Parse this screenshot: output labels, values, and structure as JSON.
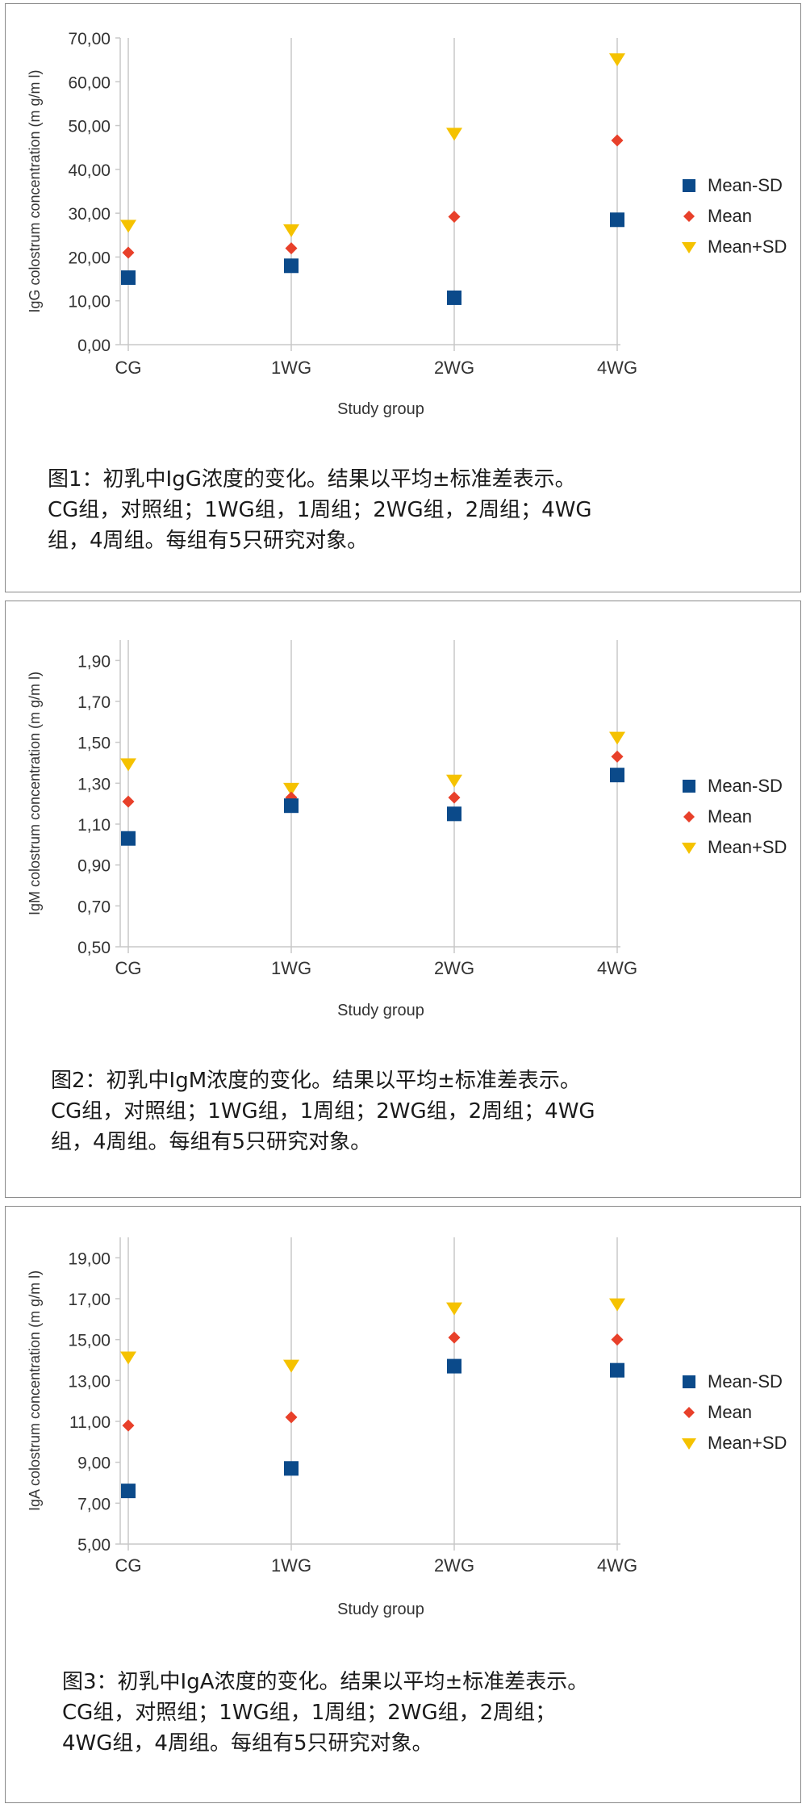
{
  "colors": {
    "mean_minus_sd": "#0b4a8a",
    "mean": "#e8402a",
    "mean_plus_sd": "#f5c200",
    "grid": "#c8c8c8",
    "axis_text": "#333333"
  },
  "chart_data": [
    {
      "type": "scatter",
      "ylabel": "IgG colostrum concentration (m g/m l)",
      "xlabel": "Study group",
      "categories": [
        "CG",
        "1WG",
        "2WG",
        "4WG"
      ],
      "ylim": [
        0,
        70
      ],
      "yticks": [
        "0,00",
        "10,00",
        "20,00",
        "30,00",
        "40,00",
        "50,00",
        "60,00",
        "70,00"
      ],
      "grid": "vertical",
      "legend_position": "right",
      "series": [
        {
          "name": "Mean-SD",
          "values": [
            15.3,
            18.0,
            10.7,
            28.5
          ]
        },
        {
          "name": "Mean",
          "values": [
            21.0,
            22.0,
            29.2,
            46.6
          ]
        },
        {
          "name": "Mean+SD",
          "values": [
            27.0,
            26.0,
            48.0,
            65.0
          ]
        }
      ],
      "caption": "图1：初乳中IgG浓度的变化。结果以平均±标准差表示。\nCG组，对照组；1WG组，1周组；2WG组，2周组；4WG\n组，4周组。每组有5只研究对象。"
    },
    {
      "type": "scatter",
      "ylabel": "IgM colostrum concentration (m g/m l)",
      "xlabel": "Study group",
      "categories": [
        "CG",
        "1WG",
        "2WG",
        "4WG"
      ],
      "ylim": [
        0.5,
        2.0
      ],
      "yticks": [
        "0,50",
        "0,70",
        "0,90",
        "1,10",
        "1,30",
        "1,50",
        "1,70",
        "1,90"
      ],
      "grid": "vertical",
      "legend_position": "right",
      "series": [
        {
          "name": "Mean-SD",
          "values": [
            1.03,
            1.19,
            1.15,
            1.34
          ]
        },
        {
          "name": "Mean",
          "values": [
            1.21,
            1.23,
            1.23,
            1.43
          ]
        },
        {
          "name": "Mean+SD",
          "values": [
            1.39,
            1.27,
            1.31,
            1.52
          ]
        }
      ],
      "caption": "图2：初乳中IgM浓度的变化。结果以平均±标准差表示。\nCG组，对照组；1WG组，1周组；2WG组，2周组；4WG\n组，4周组。每组有5只研究对象。"
    },
    {
      "type": "scatter",
      "ylabel": "IgA colostrum concentration (m g/m l)",
      "xlabel": "Study group",
      "categories": [
        "CG",
        "1WG",
        "2WG",
        "4WG"
      ],
      "ylim": [
        5,
        20
      ],
      "yticks": [
        "5,00",
        "7,00",
        "9,00",
        "11,00",
        "13,00",
        "15,00",
        "17,00",
        "19,00"
      ],
      "grid": "vertical",
      "legend_position": "right",
      "series": [
        {
          "name": "Mean-SD",
          "values": [
            7.6,
            8.7,
            13.7,
            13.5
          ]
        },
        {
          "name": "Mean",
          "values": [
            10.8,
            11.2,
            15.1,
            15.0
          ]
        },
        {
          "name": "Mean+SD",
          "values": [
            14.1,
            13.7,
            16.5,
            16.7
          ]
        }
      ],
      "caption": "图3：初乳中IgA浓度的变化。结果以平均±标准差表示。\nCG组，对照组；1WG组，1周组；2WG组，2周组；\n4WG组，4周组。每组有5只研究对象。"
    }
  ]
}
